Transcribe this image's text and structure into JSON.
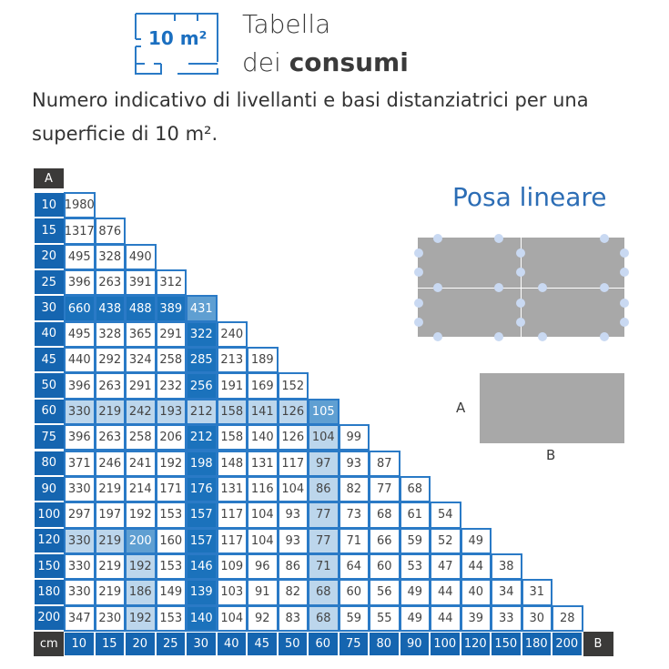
{
  "header": {
    "icon_label": "10 m²",
    "title_line1": "Tabella",
    "title_line2_prefix": "dei ",
    "title_line2_bold": "consumi"
  },
  "subtitle": "Numero indicativo di livellanti e basi distanziatrici per una superficie di 10 m².",
  "diagram": {
    "title": "Posa lineare",
    "label_a": "A",
    "label_b": "B",
    "tile_color": "#a8a8a8",
    "dot_color": "#c9d9f2"
  },
  "table": {
    "corner_a": "A",
    "corner_unit": "cm",
    "corner_b": "B",
    "colors": {
      "header": "#1565b0",
      "dark": "#1b72bc",
      "medium": "#5f9fd2",
      "light": "#bcd6ec",
      "corner": "#3b3a39"
    },
    "columns": [
      "10",
      "15",
      "20",
      "25",
      "30",
      "40",
      "45",
      "50",
      "60",
      "75",
      "80",
      "90",
      "100",
      "120",
      "150",
      "180",
      "200"
    ],
    "rows": [
      {
        "a": "10",
        "values": [
          "1980"
        ],
        "shade": [
          "w"
        ]
      },
      {
        "a": "15",
        "values": [
          "1317",
          "876"
        ],
        "shade": [
          "w",
          "w"
        ]
      },
      {
        "a": "20",
        "values": [
          "495",
          "328",
          "490"
        ],
        "shade": [
          "w",
          "w",
          "w"
        ]
      },
      {
        "a": "25",
        "values": [
          "396",
          "263",
          "391",
          "312"
        ],
        "shade": [
          "w",
          "w",
          "w",
          "w"
        ]
      },
      {
        "a": "30",
        "values": [
          "660",
          "438",
          "488",
          "389",
          "431"
        ],
        "shade": [
          "d",
          "d",
          "d",
          "d",
          "m"
        ]
      },
      {
        "a": "40",
        "values": [
          "495",
          "328",
          "365",
          "291",
          "322",
          "240"
        ],
        "shade": [
          "w",
          "w",
          "w",
          "w",
          "d",
          "w"
        ]
      },
      {
        "a": "45",
        "values": [
          "440",
          "292",
          "324",
          "258",
          "285",
          "213",
          "189"
        ],
        "shade": [
          "w",
          "w",
          "w",
          "w",
          "d",
          "w",
          "w"
        ]
      },
      {
        "a": "50",
        "values": [
          "396",
          "263",
          "291",
          "232",
          "256",
          "191",
          "169",
          "152"
        ],
        "shade": [
          "w",
          "w",
          "w",
          "w",
          "d",
          "w",
          "w",
          "w"
        ]
      },
      {
        "a": "60",
        "values": [
          "330",
          "219",
          "242",
          "193",
          "212",
          "158",
          "141",
          "126",
          "105"
        ],
        "shade": [
          "l",
          "l",
          "l",
          "l",
          "l",
          "l",
          "l",
          "l",
          "m"
        ]
      },
      {
        "a": "75",
        "values": [
          "396",
          "263",
          "258",
          "206",
          "212",
          "158",
          "140",
          "126",
          "104",
          "99"
        ],
        "shade": [
          "w",
          "w",
          "w",
          "w",
          "d",
          "w",
          "w",
          "w",
          "l",
          "w"
        ]
      },
      {
        "a": "80",
        "values": [
          "371",
          "246",
          "241",
          "192",
          "198",
          "148",
          "131",
          "117",
          "97",
          "93",
          "87"
        ],
        "shade": [
          "w",
          "w",
          "w",
          "w",
          "d",
          "w",
          "w",
          "w",
          "l",
          "w",
          "w"
        ]
      },
      {
        "a": "90",
        "values": [
          "330",
          "219",
          "214",
          "171",
          "176",
          "131",
          "116",
          "104",
          "86",
          "82",
          "77",
          "68"
        ],
        "shade": [
          "w",
          "w",
          "w",
          "w",
          "d",
          "w",
          "w",
          "w",
          "l",
          "w",
          "w",
          "w"
        ]
      },
      {
        "a": "100",
        "values": [
          "297",
          "197",
          "192",
          "153",
          "157",
          "117",
          "104",
          "93",
          "77",
          "73",
          "68",
          "61",
          "54"
        ],
        "shade": [
          "w",
          "w",
          "w",
          "w",
          "d",
          "w",
          "w",
          "w",
          "l",
          "w",
          "w",
          "w",
          "w"
        ]
      },
      {
        "a": "120",
        "values": [
          "330",
          "219",
          "200",
          "160",
          "157",
          "117",
          "104",
          "93",
          "77",
          "71",
          "66",
          "59",
          "52",
          "49"
        ],
        "shade": [
          "l",
          "l",
          "m",
          "w",
          "d",
          "w",
          "w",
          "w",
          "l",
          "w",
          "w",
          "w",
          "w",
          "w"
        ]
      },
      {
        "a": "150",
        "values": [
          "330",
          "219",
          "192",
          "153",
          "146",
          "109",
          "96",
          "86",
          "71",
          "64",
          "60",
          "53",
          "47",
          "44",
          "38"
        ],
        "shade": [
          "w",
          "w",
          "l",
          "w",
          "d",
          "w",
          "w",
          "w",
          "l",
          "w",
          "w",
          "w",
          "w",
          "w",
          "w"
        ]
      },
      {
        "a": "180",
        "values": [
          "330",
          "219",
          "186",
          "149",
          "139",
          "103",
          "91",
          "82",
          "68",
          "60",
          "56",
          "49",
          "44",
          "40",
          "34",
          "31"
        ],
        "shade": [
          "w",
          "w",
          "l",
          "w",
          "d",
          "w",
          "w",
          "w",
          "l",
          "w",
          "w",
          "w",
          "w",
          "w",
          "w",
          "w"
        ]
      },
      {
        "a": "200",
        "values": [
          "347",
          "230",
          "192",
          "153",
          "140",
          "104",
          "92",
          "83",
          "68",
          "59",
          "55",
          "49",
          "44",
          "39",
          "33",
          "30",
          "28"
        ],
        "shade": [
          "w",
          "w",
          "l",
          "w",
          "d",
          "w",
          "w",
          "w",
          "l",
          "w",
          "w",
          "w",
          "w",
          "w",
          "w",
          "w",
          "w"
        ]
      }
    ]
  }
}
